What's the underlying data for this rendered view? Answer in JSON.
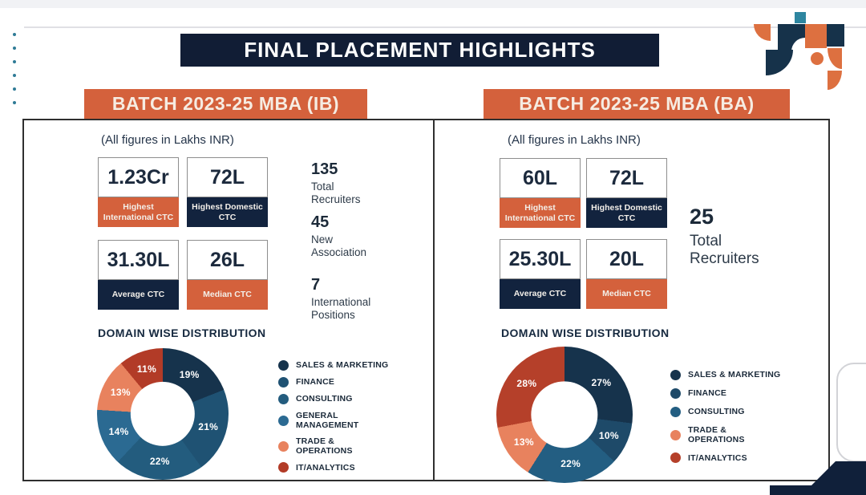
{
  "slide": {
    "title": "FINAL PLACEMENT HIGHLIGHTS"
  },
  "panels": [
    {
      "batch_label": "BATCH 2023-25 MBA (IB)",
      "figures_note": "(All figures in Lakhs INR)",
      "cards": [
        {
          "value": "1.23Cr",
          "label": "Highest International CTC",
          "accent": "orange"
        },
        {
          "value": "72L",
          "label": "Highest Domestic CTC",
          "accent": "navy"
        },
        {
          "value": "31.30L",
          "label": "Average CTC",
          "accent": "navy"
        },
        {
          "value": "26L",
          "label": "Median CTC",
          "accent": "orange"
        }
      ],
      "side_stats": [
        {
          "value": "135",
          "label": "Total Recruiters"
        },
        {
          "value": "45",
          "label": "New Association"
        },
        {
          "value": "7",
          "label": "International Positions"
        }
      ],
      "chart_heading": "DOMAIN WISE DISTRIBUTION"
    },
    {
      "batch_label": "BATCH 2023-25 MBA (BA)",
      "figures_note": "(All figures in Lakhs INR)",
      "cards": [
        {
          "value": "60L",
          "label": "Highest International CTC",
          "accent": "orange"
        },
        {
          "value": "72L",
          "label": "Highest Domestic CTC",
          "accent": "navy"
        },
        {
          "value": "25.30L",
          "label": "Average CTC",
          "accent": "navy"
        },
        {
          "value": "20L",
          "label": "Median CTC",
          "accent": "orange"
        }
      ],
      "side_stats": [
        {
          "value": "25",
          "label": "Total Recruiters"
        }
      ],
      "chart_heading": "DOMAIN WISE DISTRIBUTION"
    }
  ],
  "chart_data": [
    {
      "type": "pie",
      "donut": true,
      "title": "DOMAIN WISE DISTRIBUTION — BATCH 2023-25 MBA (IB)",
      "unit": "%",
      "labels": [
        "SALES & MARKETING",
        "FINANCE",
        "CONSULTING",
        "GENERAL MANAGEMENT",
        "TRADE & OPERATIONS",
        "IT/ANALYTICS"
      ],
      "values": [
        19,
        21,
        22,
        14,
        13,
        11
      ],
      "colors": [
        "#16334c",
        "#1f5273",
        "#235c7e",
        "#2b6a92",
        "#e8825e",
        "#b23b27"
      ],
      "legend_position": "right"
    },
    {
      "type": "pie",
      "donut": true,
      "title": "DOMAIN WISE DISTRIBUTION — BATCH 2023-25 MBA (BA)",
      "unit": "%",
      "labels": [
        "SALES & MARKETING",
        "FINANCE",
        "CONSULTING",
        "TRADE & OPERATIONS",
        "IT/ANALYTICS"
      ],
      "values": [
        27,
        10,
        22,
        13,
        28
      ],
      "colors": [
        "#16334c",
        "#1e4a69",
        "#235e82",
        "#e8825e",
        "#b5402a"
      ],
      "legend_position": "right"
    }
  ],
  "colors": {
    "navy": "#111d35",
    "card_navy": "#12233e",
    "orange": "#d4613c",
    "ornament_orange": "#dd7040",
    "ornament_navy": "#16324a",
    "teal": "#2e86a0",
    "salmon": "#e8825e",
    "brick": "#b23b27"
  }
}
